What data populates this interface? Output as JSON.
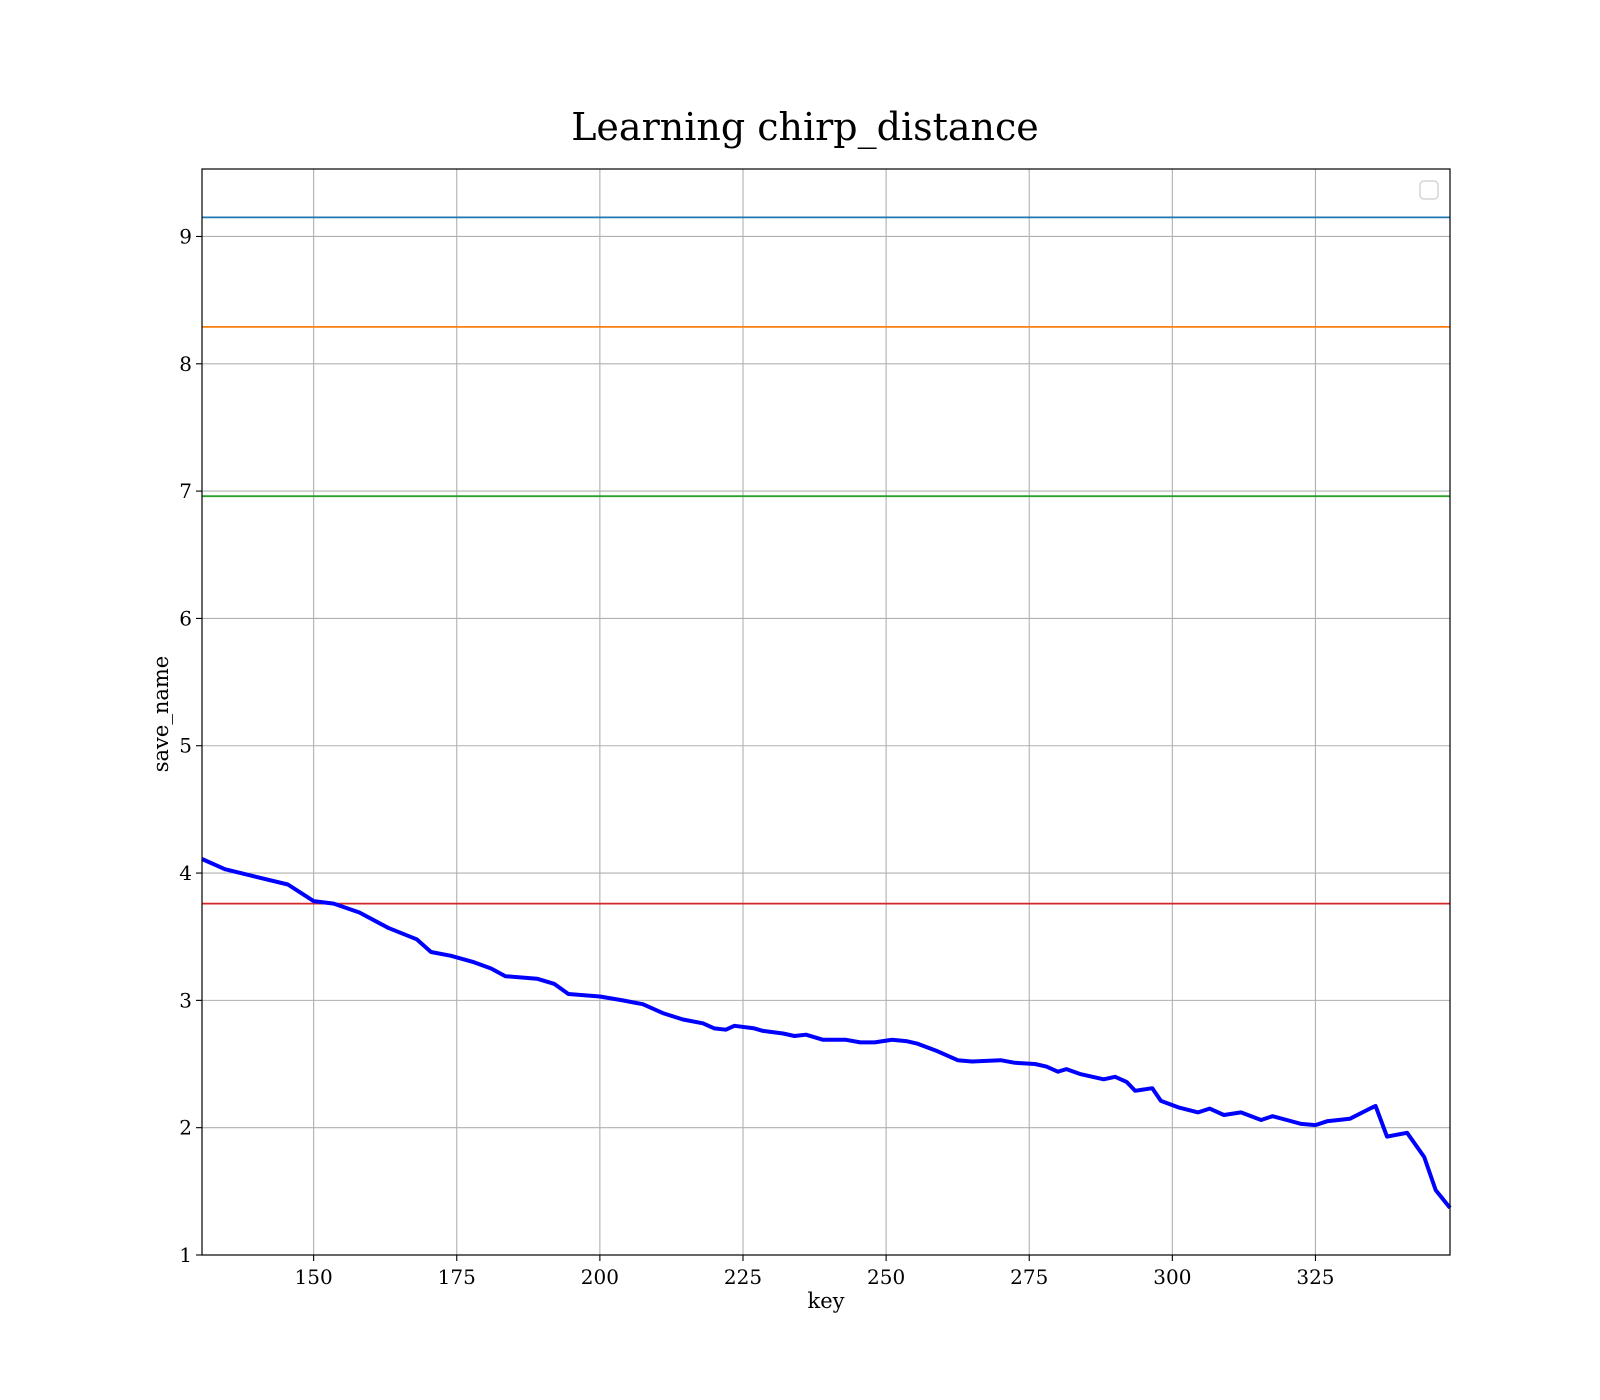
{
  "chart_data": {
    "type": "line",
    "title": "Learning chirp_distance",
    "xlabel": "key",
    "ylabel": "save_name",
    "xlim": [
      130.5,
      348.5
    ],
    "ylim": [
      1.0,
      9.53
    ],
    "xticks": [
      150,
      175,
      200,
      225,
      250,
      275,
      300,
      325
    ],
    "yticks": [
      1,
      2,
      3,
      4,
      5,
      6,
      7,
      8,
      9
    ],
    "grid": true,
    "legend": "top-right (empty)",
    "reference_lines": [
      {
        "y": 9.15,
        "color": "#1f77b4"
      },
      {
        "y": 8.29,
        "color": "#ff7f0e"
      },
      {
        "y": 6.96,
        "color": "#2ca02c"
      },
      {
        "y": 3.76,
        "color": "#d62728"
      }
    ],
    "series": [
      {
        "color": "#0000ff",
        "x": [
          130.5,
          134.5,
          140.0,
          145.5,
          150.0,
          153.5,
          158.0,
          163.0,
          168.0,
          170.5,
          174.0,
          178.0,
          181.0,
          183.5,
          189.0,
          192.0,
          194.5,
          200.0,
          204.0,
          207.5,
          211.0,
          214.5,
          218.0,
          220.0,
          222.0,
          223.5,
          227.0,
          228.5,
          232.0,
          234.0,
          236.0,
          239.0,
          243.0,
          245.5,
          248.0,
          251.0,
          253.5,
          255.5,
          259.0,
          262.5,
          265.0,
          270.0,
          272.5,
          276.0,
          278.0,
          280.0,
          281.5,
          284.0,
          288.0,
          290.0,
          292.0,
          293.5,
          296.5,
          298.0,
          301.0,
          304.5,
          306.5,
          309.0,
          312.0,
          315.5,
          317.5,
          320.0,
          322.5,
          325.0,
          327.0,
          331.0,
          334.5,
          335.5,
          337.5,
          341.0,
          344.0,
          346.0,
          348.5
        ],
        "y": [
          4.11,
          4.03,
          3.97,
          3.91,
          3.78,
          3.76,
          3.69,
          3.57,
          3.48,
          3.38,
          3.35,
          3.3,
          3.25,
          3.19,
          3.17,
          3.13,
          3.05,
          3.03,
          3.0,
          2.97,
          2.9,
          2.85,
          2.82,
          2.78,
          2.77,
          2.8,
          2.78,
          2.76,
          2.74,
          2.72,
          2.73,
          2.69,
          2.69,
          2.67,
          2.67,
          2.69,
          2.68,
          2.66,
          2.6,
          2.53,
          2.52,
          2.53,
          2.51,
          2.5,
          2.48,
          2.44,
          2.46,
          2.42,
          2.38,
          2.4,
          2.36,
          2.29,
          2.31,
          2.21,
          2.16,
          2.12,
          2.15,
          2.1,
          2.12,
          2.06,
          2.09,
          2.06,
          2.03,
          2.02,
          2.05,
          2.07,
          2.15,
          2.17,
          1.93,
          1.96,
          1.77,
          1.51,
          1.37
        ]
      }
    ]
  }
}
